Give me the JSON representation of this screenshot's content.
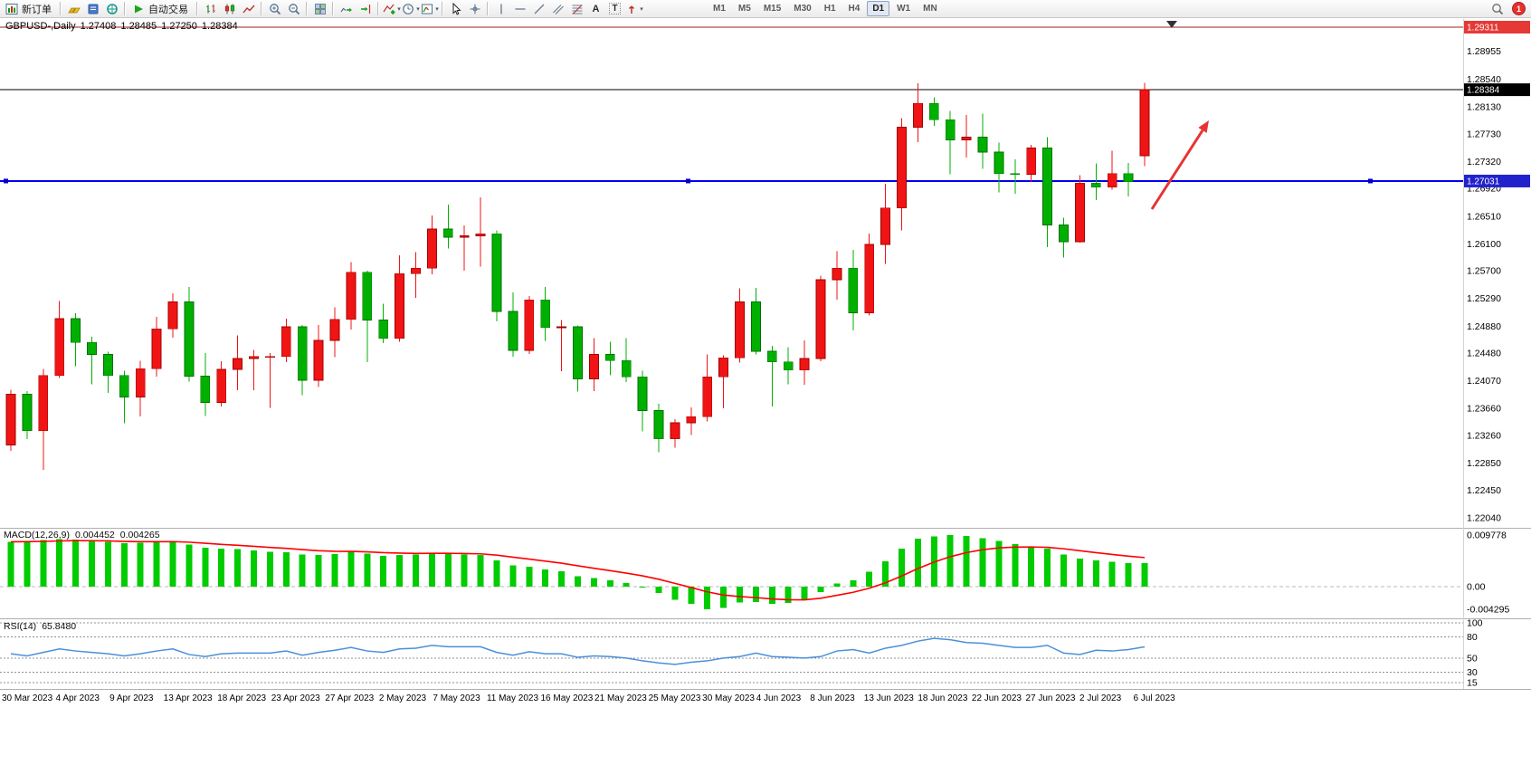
{
  "toolbar": {
    "new_order_label": "新订单",
    "autotrade_label": "自动交易",
    "timeframes": [
      "M1",
      "M5",
      "M15",
      "M30",
      "H1",
      "H4",
      "D1",
      "W1",
      "MN"
    ],
    "active_timeframe": "D1",
    "notification_count": "1"
  },
  "chart_header": {
    "symbol_title": "GBPUSD-,Daily",
    "open": "1.27408",
    "high": "1.28485",
    "low": "1.27250",
    "close": "1.28384"
  },
  "indicators": {
    "macd": {
      "label": "MACD(12,26,9)",
      "main_value": "0.004452",
      "signal_value": "0.004265",
      "axis_labels": [
        {
          "label": "0.009778",
          "value": 0.009778
        },
        {
          "label": "0.00",
          "value": 0
        },
        {
          "label": "-0.004295",
          "value": -0.004295
        }
      ]
    },
    "rsi": {
      "label": "RSI(14)",
      "value": "65.8480",
      "axis_labels": [
        {
          "label": "100",
          "value": 100
        },
        {
          "label": "80",
          "value": 80
        },
        {
          "label": "50",
          "value": 50
        },
        {
          "label": "30",
          "value": 30
        },
        {
          "label": "15",
          "value": 15
        }
      ],
      "levels": [
        100,
        80,
        50,
        30,
        15
      ]
    }
  },
  "price_axis": {
    "ticks": [
      {
        "label": "1.28955",
        "price": 1.28955
      },
      {
        "label": "1.28540",
        "price": 1.2854
      },
      {
        "label": "1.28130",
        "price": 1.2813
      },
      {
        "label": "1.27730",
        "price": 1.2773
      },
      {
        "label": "1.27320",
        "price": 1.2732
      },
      {
        "label": "1.26920",
        "price": 1.2692
      },
      {
        "label": "1.26510",
        "price": 1.2651
      },
      {
        "label": "1.26100",
        "price": 1.261
      },
      {
        "label": "1.25700",
        "price": 1.257
      },
      {
        "label": "1.25290",
        "price": 1.2529
      },
      {
        "label": "1.24880",
        "price": 1.2488
      },
      {
        "label": "1.24480",
        "price": 1.2448
      },
      {
        "label": "1.24070",
        "price": 1.2407
      },
      {
        "label": "1.23660",
        "price": 1.2366
      },
      {
        "label": "1.23260",
        "price": 1.2326
      },
      {
        "label": "1.22850",
        "price": 1.2285
      },
      {
        "label": "1.22450",
        "price": 1.2245
      },
      {
        "label": "1.22040",
        "price": 1.2204
      }
    ],
    "badges": [
      {
        "label": "1.29311",
        "price": 1.29311,
        "color": "#e53935"
      },
      {
        "label": "1.28384",
        "price": 1.28384,
        "color": "#000000"
      },
      {
        "label": "1.27031",
        "price": 1.27031,
        "color": "#2222cc"
      }
    ]
  },
  "time_axis": {
    "labels": [
      "30 Mar 2023",
      "4 Apr 2023",
      "9 Apr 2023",
      "13 Apr 2023",
      "18 Apr 2023",
      "23 Apr 2023",
      "27 Apr 2023",
      "2 May 2023",
      "7 May 2023",
      "11 May 2023",
      "16 May 2023",
      "21 May 2023",
      "25 May 2023",
      "30 May 2023",
      "4 Jun 2023",
      "8 Jun 2023",
      "13 Jun 2023",
      "18 Jun 2023",
      "22 Jun 2023",
      "27 Jun 2023",
      "2 Jul 2023",
      "6 Jul 2023"
    ]
  },
  "icons": {
    "caret": "▾",
    "text_tool": "A",
    "label_tool": "T"
  },
  "colors": {
    "candle_up": "#f01414",
    "candle_up_border": "#a00000",
    "candle_down": "#00b000",
    "candle_down_border": "#007000",
    "macd_hist": "#00cc00",
    "macd_signal": "#ff0000",
    "rsi_line": "#4a90d9",
    "hline_black": "#000000",
    "hline_blue": "#0000ee",
    "hline_maroon": "#992222",
    "arrow": "#e83333",
    "separator": "#b0b0b0"
  },
  "chart_data": [
    {
      "type": "candlestick",
      "title": "GBPUSD- Daily",
      "note": "red = bullish, green = bearish",
      "ylim": [
        1.2204,
        1.29311
      ],
      "x_tick_labels": [
        "30 Mar 2023",
        "4 Apr 2023",
        "9 Apr 2023",
        "13 Apr 2023",
        "18 Apr 2023",
        "23 Apr 2023",
        "27 Apr 2023",
        "2 May 2023",
        "7 May 2023",
        "11 May 2023",
        "16 May 2023",
        "21 May 2023",
        "25 May 2023",
        "30 May 2023",
        "4 Jun 2023",
        "8 Jun 2023",
        "13 Jun 2023",
        "18 Jun 2023",
        "22 Jun 2023",
        "27 Jun 2023",
        "2 Jul 2023",
        "6 Jul 2023"
      ],
      "candles_ohlc": [
        [
          1.2312,
          1.2394,
          1.2303,
          1.2387
        ],
        [
          1.2387,
          1.2392,
          1.2321,
          1.2333
        ],
        [
          1.2333,
          1.2425,
          1.2275,
          1.2415
        ],
        [
          1.2415,
          1.2525,
          1.2411,
          1.2499
        ],
        [
          1.2499,
          1.2507,
          1.2429,
          1.2464
        ],
        [
          1.2464,
          1.2472,
          1.2402,
          1.2446
        ],
        [
          1.2446,
          1.245,
          1.2389,
          1.2415
        ],
        [
          1.2415,
          1.2422,
          1.2344,
          1.2383
        ],
        [
          1.2383,
          1.2437,
          1.2354,
          1.2425
        ],
        [
          1.2425,
          1.2502,
          1.2413,
          1.2484
        ],
        [
          1.2484,
          1.2537,
          1.2471,
          1.2524
        ],
        [
          1.2524,
          1.2546,
          1.2406,
          1.2414
        ],
        [
          1.2414,
          1.2448,
          1.2355,
          1.2375
        ],
        [
          1.2375,
          1.2436,
          1.2369,
          1.2424
        ],
        [
          1.2424,
          1.2474,
          1.2393,
          1.244
        ],
        [
          1.244,
          1.2453,
          1.2393,
          1.2443
        ],
        [
          1.2443,
          1.2448,
          1.2367,
          1.2443
        ],
        [
          1.2443,
          1.2499,
          1.2435,
          1.2487
        ],
        [
          1.2487,
          1.249,
          1.2386,
          1.2408
        ],
        [
          1.2408,
          1.249,
          1.2398,
          1.2467
        ],
        [
          1.2467,
          1.2516,
          1.2442,
          1.2498
        ],
        [
          1.2498,
          1.2583,
          1.2483,
          1.2568
        ],
        [
          1.2568,
          1.257,
          1.2435,
          1.2497
        ],
        [
          1.2497,
          1.2521,
          1.2463,
          1.247
        ],
        [
          1.247,
          1.2593,
          1.2465,
          1.2566
        ],
        [
          1.2566,
          1.2598,
          1.253,
          1.2574
        ],
        [
          1.2574,
          1.2652,
          1.2565,
          1.2632
        ],
        [
          1.2632,
          1.2668,
          1.2603,
          1.262
        ],
        [
          1.262,
          1.2637,
          1.257,
          1.2622
        ],
        [
          1.2622,
          1.2679,
          1.2576,
          1.2625
        ],
        [
          1.2625,
          1.263,
          1.2495,
          1.251
        ],
        [
          1.251,
          1.2538,
          1.2443,
          1.2452
        ],
        [
          1.2452,
          1.2533,
          1.2447,
          1.2527
        ],
        [
          1.2527,
          1.2546,
          1.2466,
          1.2486
        ],
        [
          1.2486,
          1.2497,
          1.2421,
          1.2487
        ],
        [
          1.2487,
          1.2489,
          1.2391,
          1.241
        ],
        [
          1.241,
          1.247,
          1.2392,
          1.2446
        ],
        [
          1.2446,
          1.2465,
          1.2415,
          1.2437
        ],
        [
          1.2437,
          1.247,
          1.2405,
          1.2413
        ],
        [
          1.2413,
          1.2422,
          1.2332,
          1.2363
        ],
        [
          1.2363,
          1.2373,
          1.2301,
          1.2321
        ],
        [
          1.2321,
          1.235,
          1.2308,
          1.2345
        ],
        [
          1.2345,
          1.2368,
          1.2327,
          1.2354
        ],
        [
          1.2354,
          1.2446,
          1.2347,
          1.2413
        ],
        [
          1.2413,
          1.2445,
          1.2366,
          1.2441
        ],
        [
          1.2441,
          1.2544,
          1.2434,
          1.2524
        ],
        [
          1.2524,
          1.2545,
          1.2446,
          1.2451
        ],
        [
          1.2451,
          1.2459,
          1.2369,
          1.2435
        ],
        [
          1.2435,
          1.2457,
          1.2402,
          1.2423
        ],
        [
          1.2423,
          1.2467,
          1.2401,
          1.244
        ],
        [
          1.244,
          1.2563,
          1.2436,
          1.2557
        ],
        [
          1.2557,
          1.2599,
          1.2527,
          1.2574
        ],
        [
          1.2574,
          1.2601,
          1.2482,
          1.2508
        ],
        [
          1.2508,
          1.2625,
          1.2504,
          1.2609
        ],
        [
          1.2609,
          1.2699,
          1.258,
          1.2663
        ],
        [
          1.2663,
          1.2796,
          1.263,
          1.2783
        ],
        [
          1.2783,
          1.2848,
          1.2761,
          1.2818
        ],
        [
          1.2818,
          1.2827,
          1.2785,
          1.2794
        ],
        [
          1.2794,
          1.2807,
          1.2713,
          1.2764
        ],
        [
          1.2764,
          1.2801,
          1.2738,
          1.2768
        ],
        [
          1.2768,
          1.2803,
          1.2721,
          1.2746
        ],
        [
          1.2746,
          1.276,
          1.2686,
          1.2714
        ],
        [
          1.2714,
          1.2735,
          1.2684,
          1.2713
        ],
        [
          1.2713,
          1.2757,
          1.2702,
          1.2752
        ],
        [
          1.2752,
          1.2768,
          1.2605,
          1.2638
        ],
        [
          1.2638,
          1.2649,
          1.259,
          1.2613
        ],
        [
          1.2613,
          1.2712,
          1.2612,
          1.27
        ],
        [
          1.27,
          1.2729,
          1.2675,
          1.2694
        ],
        [
          1.2694,
          1.2748,
          1.269,
          1.2714
        ],
        [
          1.2714,
          1.273,
          1.268,
          1.2702
        ],
        [
          1.27408,
          1.28485,
          1.2725,
          1.28384
        ]
      ],
      "overlays": {
        "horizontal_lines": [
          {
            "price": 1.29311,
            "color": "#992222",
            "style": "solid"
          },
          {
            "price": 1.28384,
            "color": "#000000",
            "style": "solid"
          },
          {
            "price": 1.27031,
            "color": "#0000ee",
            "style": "solid-selected"
          }
        ],
        "trend_arrow": {
          "direction": "up-right",
          "color": "#e83333"
        }
      }
    },
    {
      "type": "bar",
      "name": "MACD(12,26,9)",
      "current_main": 0.004452,
      "current_signal": 0.004265,
      "ylim": [
        -0.004295,
        0.009778
      ],
      "histogram": [
        0.0085,
        0.0086,
        0.0088,
        0.009,
        0.0089,
        0.0087,
        0.0085,
        0.0082,
        0.0083,
        0.0085,
        0.0086,
        0.008,
        0.0074,
        0.0072,
        0.0071,
        0.0069,
        0.0066,
        0.0065,
        0.0061,
        0.006,
        0.0062,
        0.0066,
        0.0063,
        0.0058,
        0.006,
        0.0061,
        0.0064,
        0.0063,
        0.0061,
        0.006,
        0.005,
        0.004,
        0.0038,
        0.0033,
        0.0029,
        0.002,
        0.0016,
        0.0012,
        0.0007,
        0.0,
        -0.0012,
        -0.0025,
        -0.0033,
        -0.0043,
        -0.004,
        -0.003,
        -0.0029,
        -0.0033,
        -0.0031,
        -0.0026,
        -0.001,
        0.0006,
        0.0012,
        0.0028,
        0.0048,
        0.0072,
        0.0091,
        0.0095,
        0.009778,
        0.0096,
        0.0092,
        0.0087,
        0.0081,
        0.0076,
        0.0072,
        0.0061,
        0.0053,
        0.005,
        0.0047,
        0.0045,
        0.004452
      ]
    },
    {
      "type": "line",
      "name": "RSI(14)",
      "current": 65.848,
      "ylim": [
        15,
        100
      ],
      "levels": [
        80,
        50,
        30
      ],
      "values": [
        56,
        53,
        58,
        63,
        60,
        58,
        56,
        53,
        56,
        60,
        63,
        55,
        52,
        56,
        57,
        57,
        57,
        60,
        54,
        58,
        61,
        65,
        60,
        58,
        63,
        64,
        68,
        66,
        66,
        66,
        58,
        54,
        59,
        56,
        56,
        51,
        53,
        52,
        50,
        46,
        43,
        41,
        44,
        46,
        50,
        52,
        57,
        52,
        51,
        50,
        52,
        60,
        62,
        57,
        64,
        68,
        74,
        78,
        76,
        72,
        71,
        68,
        65,
        65,
        68,
        57,
        55,
        61,
        60,
        62,
        65.848
      ]
    }
  ]
}
